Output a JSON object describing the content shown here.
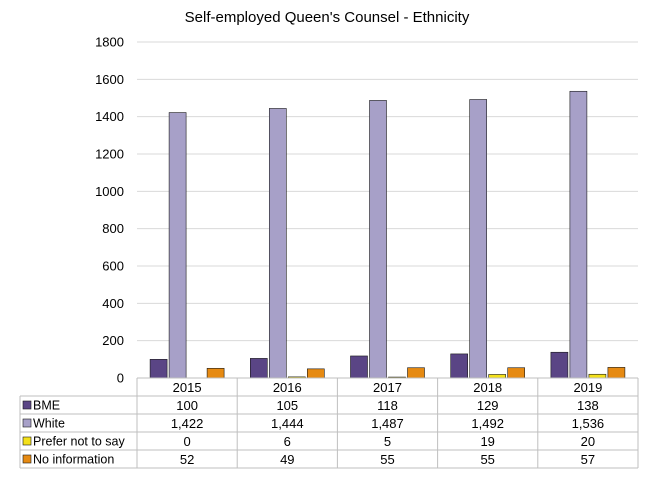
{
  "chart_data": {
    "type": "bar",
    "title": "Self-employed Queen's Counsel - Ethnicity",
    "categories": [
      "2015",
      "2016",
      "2017",
      "2018",
      "2019"
    ],
    "ylim": [
      0,
      1800
    ],
    "yticks": [
      0,
      200,
      400,
      600,
      800,
      1000,
      1200,
      1400,
      1600,
      1800
    ],
    "grid": true,
    "legend": "data-table-left",
    "series": [
      {
        "name": "BME",
        "color": "#5a4585",
        "values": [
          100,
          105,
          118,
          129,
          138
        ],
        "labels": [
          "100",
          "105",
          "118",
          "129",
          "138"
        ]
      },
      {
        "name": "White",
        "color": "#a7a0c8",
        "values": [
          1422,
          1444,
          1487,
          1492,
          1536
        ],
        "labels": [
          "1,422",
          "1,444",
          "1,487",
          "1,492",
          "1,536"
        ]
      },
      {
        "name": "Prefer not to say",
        "color": "#f3e01a",
        "values": [
          0,
          6,
          5,
          19,
          20
        ],
        "labels": [
          "0",
          "6",
          "5",
          "19",
          "20"
        ]
      },
      {
        "name": "No information",
        "color": "#e68a12",
        "values": [
          52,
          49,
          55,
          55,
          57
        ],
        "labels": [
          "52",
          "49",
          "55",
          "55",
          "57"
        ]
      }
    ]
  }
}
